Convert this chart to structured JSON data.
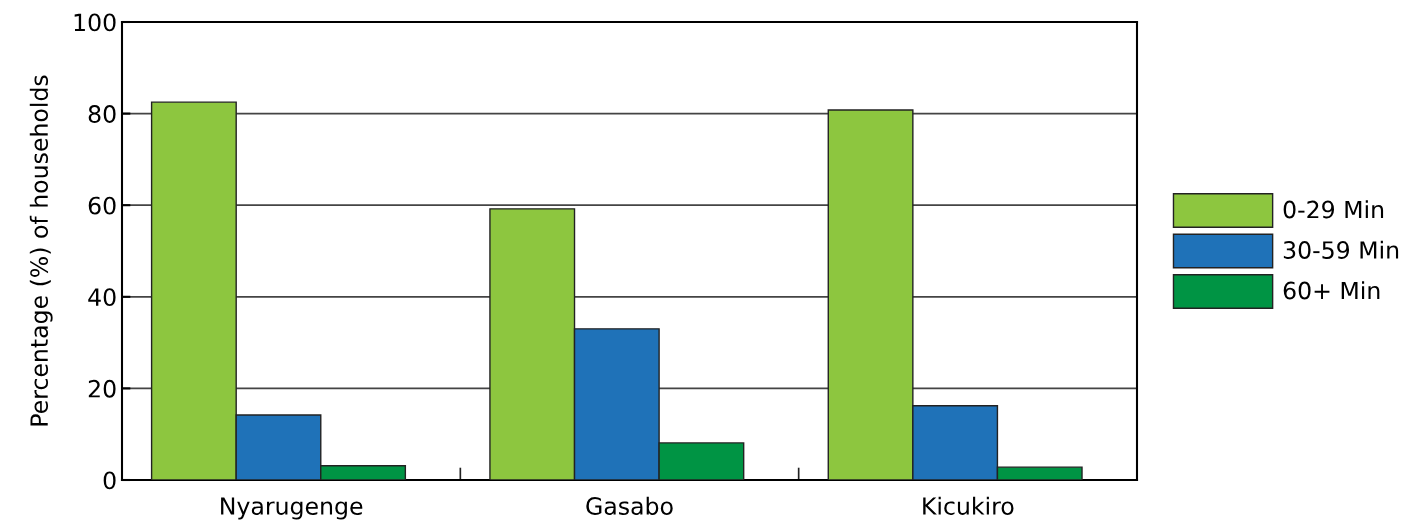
{
  "chart_data": {
    "type": "bar",
    "ylabel": "Percentage (%) of households",
    "categories": [
      "Nyarugenge",
      "Gasabo",
      "Kicukiro"
    ],
    "series": [
      {
        "name": "0-29 Min",
        "color": "#8dc63f",
        "values": [
          82.5,
          59.2,
          80.8
        ]
      },
      {
        "name": "30-59 Min",
        "color": "#1f72b8",
        "values": [
          14.2,
          33.0,
          16.2
        ]
      },
      {
        "name": "60+ Min",
        "color": "#009444",
        "values": [
          3.1,
          8.1,
          2.8
        ]
      }
    ],
    "ylim": [
      0,
      100
    ],
    "yticks": [
      0,
      20,
      40,
      60,
      80,
      100
    ],
    "grid": "y",
    "legend": "right"
  }
}
